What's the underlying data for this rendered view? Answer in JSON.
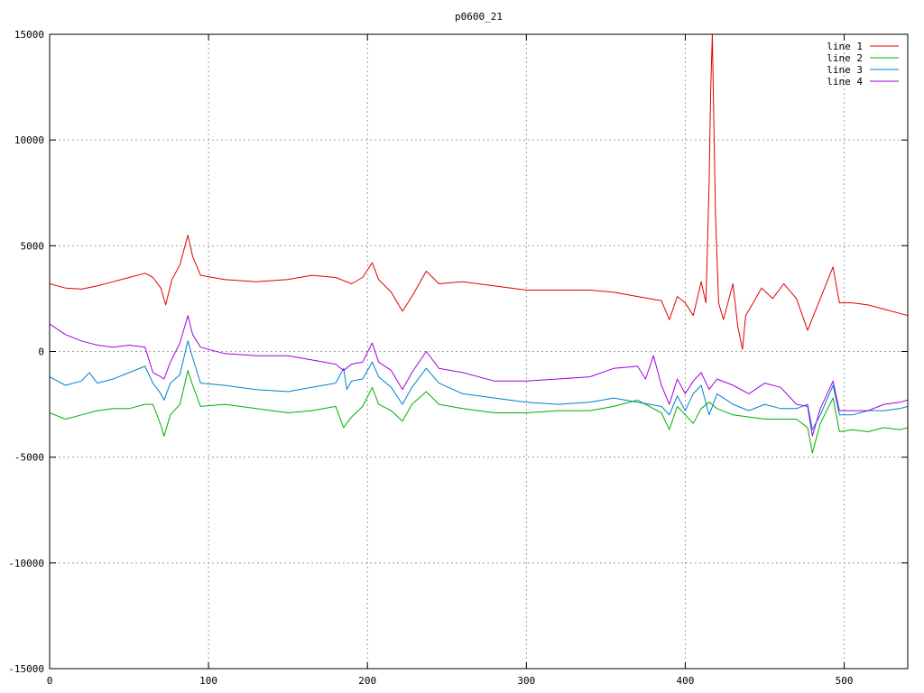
{
  "chart_data": {
    "type": "line",
    "title": "p0600_21",
    "xlabel": "",
    "ylabel": "",
    "xlim": [
      0,
      540
    ],
    "ylim": [
      -15000,
      15000
    ],
    "x_ticks": [
      0,
      100,
      200,
      300,
      400,
      500
    ],
    "y_ticks": [
      -15000,
      -10000,
      -5000,
      0,
      5000,
      10000,
      15000
    ],
    "grid": true,
    "legend_position": "top-right",
    "series": [
      {
        "name": "line 1",
        "color": "#e00000",
        "points": [
          [
            0,
            3200
          ],
          [
            10,
            3000
          ],
          [
            20,
            2950
          ],
          [
            30,
            3100
          ],
          [
            40,
            3300
          ],
          [
            50,
            3500
          ],
          [
            60,
            3700
          ],
          [
            65,
            3500
          ],
          [
            70,
            3000
          ],
          [
            73,
            2200
          ],
          [
            77,
            3400
          ],
          [
            82,
            4100
          ],
          [
            87,
            5500
          ],
          [
            90,
            4500
          ],
          [
            95,
            3600
          ],
          [
            110,
            3400
          ],
          [
            130,
            3300
          ],
          [
            150,
            3400
          ],
          [
            165,
            3600
          ],
          [
            180,
            3500
          ],
          [
            190,
            3200
          ],
          [
            197,
            3500
          ],
          [
            203,
            4200
          ],
          [
            207,
            3400
          ],
          [
            215,
            2800
          ],
          [
            222,
            1900
          ],
          [
            228,
            2600
          ],
          [
            237,
            3800
          ],
          [
            245,
            3200
          ],
          [
            260,
            3300
          ],
          [
            280,
            3100
          ],
          [
            300,
            2900
          ],
          [
            320,
            2900
          ],
          [
            340,
            2900
          ],
          [
            355,
            2800
          ],
          [
            370,
            2600
          ],
          [
            385,
            2400
          ],
          [
            390,
            1500
          ],
          [
            395,
            2600
          ],
          [
            400,
            2300
          ],
          [
            405,
            1700
          ],
          [
            410,
            3300
          ],
          [
            413,
            2300
          ],
          [
            415,
            8000
          ],
          [
            416,
            12300
          ],
          [
            417,
            15000
          ],
          [
            419,
            6500
          ],
          [
            421,
            2300
          ],
          [
            424,
            1500
          ],
          [
            430,
            3200
          ],
          [
            433,
            1200
          ],
          [
            436,
            100
          ],
          [
            438,
            1700
          ],
          [
            442,
            2200
          ],
          [
            448,
            3000
          ],
          [
            455,
            2500
          ],
          [
            462,
            3200
          ],
          [
            470,
            2500
          ],
          [
            477,
            1000
          ],
          [
            485,
            2500
          ],
          [
            493,
            4000
          ],
          [
            497,
            2300
          ],
          [
            505,
            2300
          ],
          [
            515,
            2200
          ],
          [
            525,
            2000
          ],
          [
            535,
            1800
          ],
          [
            540,
            1700
          ]
        ]
      },
      {
        "name": "line 2",
        "color": "#00b000",
        "points": [
          [
            0,
            -2900
          ],
          [
            10,
            -3200
          ],
          [
            20,
            -3000
          ],
          [
            30,
            -2800
          ],
          [
            40,
            -2700
          ],
          [
            50,
            -2700
          ],
          [
            60,
            -2500
          ],
          [
            65,
            -2500
          ],
          [
            70,
            -3500
          ],
          [
            72,
            -4000
          ],
          [
            76,
            -3000
          ],
          [
            82,
            -2500
          ],
          [
            87,
            -900
          ],
          [
            90,
            -1600
          ],
          [
            95,
            -2600
          ],
          [
            110,
            -2500
          ],
          [
            130,
            -2700
          ],
          [
            150,
            -2900
          ],
          [
            165,
            -2800
          ],
          [
            180,
            -2600
          ],
          [
            185,
            -3600
          ],
          [
            190,
            -3100
          ],
          [
            197,
            -2600
          ],
          [
            203,
            -1700
          ],
          [
            207,
            -2500
          ],
          [
            215,
            -2800
          ],
          [
            222,
            -3300
          ],
          [
            228,
            -2500
          ],
          [
            237,
            -1900
          ],
          [
            245,
            -2500
          ],
          [
            260,
            -2700
          ],
          [
            280,
            -2900
          ],
          [
            300,
            -2900
          ],
          [
            320,
            -2800
          ],
          [
            340,
            -2800
          ],
          [
            355,
            -2600
          ],
          [
            370,
            -2300
          ],
          [
            385,
            -2900
          ],
          [
            390,
            -3700
          ],
          [
            395,
            -2600
          ],
          [
            400,
            -3000
          ],
          [
            405,
            -3400
          ],
          [
            410,
            -2700
          ],
          [
            415,
            -2400
          ],
          [
            420,
            -2700
          ],
          [
            430,
            -3000
          ],
          [
            440,
            -3100
          ],
          [
            450,
            -3200
          ],
          [
            460,
            -3200
          ],
          [
            470,
            -3200
          ],
          [
            477,
            -3600
          ],
          [
            480,
            -4800
          ],
          [
            485,
            -3400
          ],
          [
            493,
            -2200
          ],
          [
            497,
            -3800
          ],
          [
            505,
            -3700
          ],
          [
            515,
            -3800
          ],
          [
            525,
            -3600
          ],
          [
            535,
            -3700
          ],
          [
            540,
            -3600
          ]
        ]
      },
      {
        "name": "line 3",
        "color": "#0080d0",
        "points": [
          [
            0,
            -1200
          ],
          [
            10,
            -1600
          ],
          [
            20,
            -1400
          ],
          [
            25,
            -1000
          ],
          [
            30,
            -1500
          ],
          [
            40,
            -1300
          ],
          [
            50,
            -1000
          ],
          [
            60,
            -700
          ],
          [
            65,
            -1500
          ],
          [
            70,
            -2000
          ],
          [
            72,
            -2300
          ],
          [
            76,
            -1500
          ],
          [
            82,
            -1100
          ],
          [
            87,
            500
          ],
          [
            90,
            -300
          ],
          [
            95,
            -1500
          ],
          [
            110,
            -1600
          ],
          [
            130,
            -1800
          ],
          [
            150,
            -1900
          ],
          [
            165,
            -1700
          ],
          [
            180,
            -1500
          ],
          [
            185,
            -800
          ],
          [
            187,
            -1800
          ],
          [
            190,
            -1400
          ],
          [
            197,
            -1300
          ],
          [
            203,
            -500
          ],
          [
            207,
            -1200
          ],
          [
            215,
            -1700
          ],
          [
            222,
            -2500
          ],
          [
            228,
            -1700
          ],
          [
            237,
            -800
          ],
          [
            245,
            -1500
          ],
          [
            260,
            -2000
          ],
          [
            280,
            -2200
          ],
          [
            300,
            -2400
          ],
          [
            320,
            -2500
          ],
          [
            340,
            -2400
          ],
          [
            355,
            -2200
          ],
          [
            370,
            -2400
          ],
          [
            385,
            -2600
          ],
          [
            390,
            -3000
          ],
          [
            395,
            -2100
          ],
          [
            400,
            -2800
          ],
          [
            405,
            -2000
          ],
          [
            410,
            -1600
          ],
          [
            415,
            -3000
          ],
          [
            420,
            -2000
          ],
          [
            430,
            -2500
          ],
          [
            440,
            -2800
          ],
          [
            450,
            -2500
          ],
          [
            460,
            -2700
          ],
          [
            470,
            -2700
          ],
          [
            477,
            -2500
          ],
          [
            480,
            -3700
          ],
          [
            485,
            -3000
          ],
          [
            493,
            -1600
          ],
          [
            497,
            -3000
          ],
          [
            505,
            -3000
          ],
          [
            515,
            -2800
          ],
          [
            525,
            -2800
          ],
          [
            535,
            -2700
          ],
          [
            540,
            -2600
          ]
        ]
      },
      {
        "name": "line 4",
        "color": "#a000e0",
        "points": [
          [
            0,
            1300
          ],
          [
            10,
            800
          ],
          [
            20,
            500
          ],
          [
            30,
            300
          ],
          [
            40,
            200
          ],
          [
            50,
            300
          ],
          [
            60,
            200
          ],
          [
            65,
            -1000
          ],
          [
            70,
            -1200
          ],
          [
            72,
            -1300
          ],
          [
            76,
            -500
          ],
          [
            82,
            400
          ],
          [
            87,
            1700
          ],
          [
            90,
            800
          ],
          [
            95,
            200
          ],
          [
            110,
            -100
          ],
          [
            130,
            -200
          ],
          [
            150,
            -200
          ],
          [
            165,
            -400
          ],
          [
            180,
            -600
          ],
          [
            185,
            -900
          ],
          [
            190,
            -600
          ],
          [
            197,
            -500
          ],
          [
            203,
            400
          ],
          [
            207,
            -500
          ],
          [
            215,
            -900
          ],
          [
            222,
            -1800
          ],
          [
            228,
            -1000
          ],
          [
            237,
            0
          ],
          [
            245,
            -800
          ],
          [
            260,
            -1000
          ],
          [
            280,
            -1400
          ],
          [
            300,
            -1400
          ],
          [
            320,
            -1300
          ],
          [
            340,
            -1200
          ],
          [
            355,
            -800
          ],
          [
            370,
            -700
          ],
          [
            375,
            -1300
          ],
          [
            380,
            -200
          ],
          [
            385,
            -1600
          ],
          [
            390,
            -2500
          ],
          [
            395,
            -1300
          ],
          [
            400,
            -2000
          ],
          [
            405,
            -1400
          ],
          [
            410,
            -1000
          ],
          [
            415,
            -1800
          ],
          [
            420,
            -1300
          ],
          [
            430,
            -1600
          ],
          [
            440,
            -2000
          ],
          [
            450,
            -1500
          ],
          [
            460,
            -1700
          ],
          [
            470,
            -2500
          ],
          [
            477,
            -2600
          ],
          [
            480,
            -4000
          ],
          [
            485,
            -2700
          ],
          [
            493,
            -1400
          ],
          [
            497,
            -2800
          ],
          [
            505,
            -2800
          ],
          [
            515,
            -2800
          ],
          [
            525,
            -2500
          ],
          [
            535,
            -2400
          ],
          [
            540,
            -2300
          ]
        ]
      }
    ]
  }
}
